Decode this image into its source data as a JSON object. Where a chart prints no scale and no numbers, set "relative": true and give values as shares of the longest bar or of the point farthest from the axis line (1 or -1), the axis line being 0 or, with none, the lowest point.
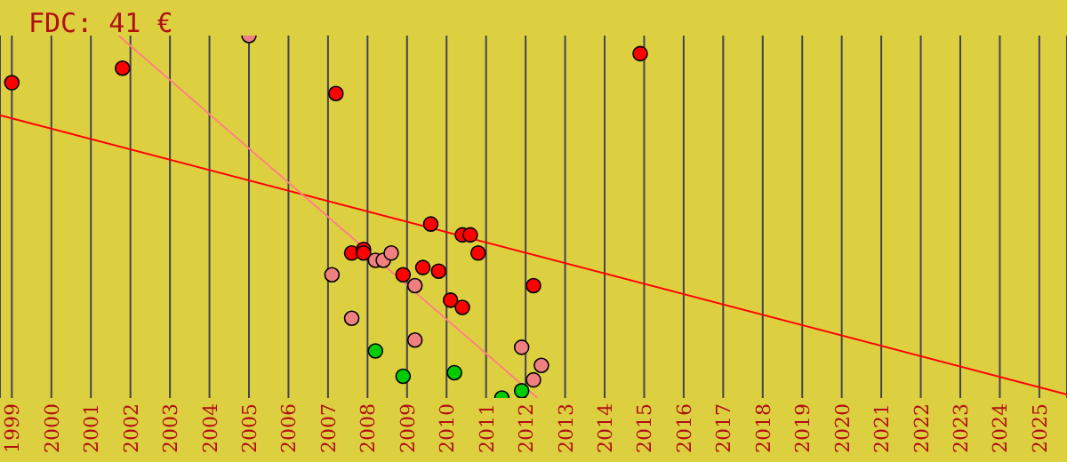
{
  "chart_data": {
    "type": "scatter",
    "title": "FDC: 41 €",
    "relative": true,
    "grid": "x",
    "tick_labels": "x",
    "marker": "circle",
    "legend": false,
    "xlim": [
      1998.7,
      2025.7
    ],
    "xticks": [
      1999,
      2000,
      2001,
      2002,
      2003,
      2004,
      2005,
      2006,
      2007,
      2008,
      2009,
      2010,
      2011,
      2012,
      2013,
      2014,
      2015,
      2016,
      2017,
      2018,
      2019,
      2020,
      2021,
      2022,
      2023,
      2024,
      2025
    ],
    "series": [
      {
        "color": "#ff0000",
        "x": [
          1999.0,
          2001.8,
          2007.2,
          2014.9,
          2009.6,
          2010.4,
          2010.6,
          2007.6,
          2007.9,
          2007.9,
          2010.8,
          2008.9,
          2009.4,
          2009.8,
          2010.1,
          2010.4,
          2012.2
        ],
        "values": [
          0.87,
          0.91,
          0.84,
          0.95,
          0.48,
          0.45,
          0.45,
          0.4,
          0.41,
          0.4,
          0.4,
          0.34,
          0.36,
          0.35,
          0.27,
          0.25,
          0.31
        ]
      },
      {
        "color": "#f08080",
        "x": [
          2005.0,
          2007.1,
          2008.2,
          2008.4,
          2008.6,
          2009.2,
          2007.6,
          2009.2,
          2011.9,
          2012.4,
          2012.2
        ],
        "values": [
          1,
          0.34,
          0.38,
          0.38,
          0.4,
          0.31,
          0.22,
          0.16,
          0.14,
          0.09,
          0.05
        ]
      },
      {
        "color": "#00cc00",
        "x": [
          2008.2,
          2008.9,
          2010.2,
          2011.4,
          2011.9
        ],
        "values": [
          0.13,
          0.06,
          0.07,
          0,
          0.02
        ]
      },
      {
        "type": "line",
        "marker": "none",
        "color": "#ff0000",
        "x": [
          1998.7,
          2025.7
        ],
        "values": [
          0.78,
          0.01
        ]
      },
      {
        "type": "line",
        "marker": "none",
        "color": "#ff8080",
        "x": [
          2001.7,
          2012.3
        ],
        "values": [
          1,
          0
        ]
      }
    ]
  }
}
